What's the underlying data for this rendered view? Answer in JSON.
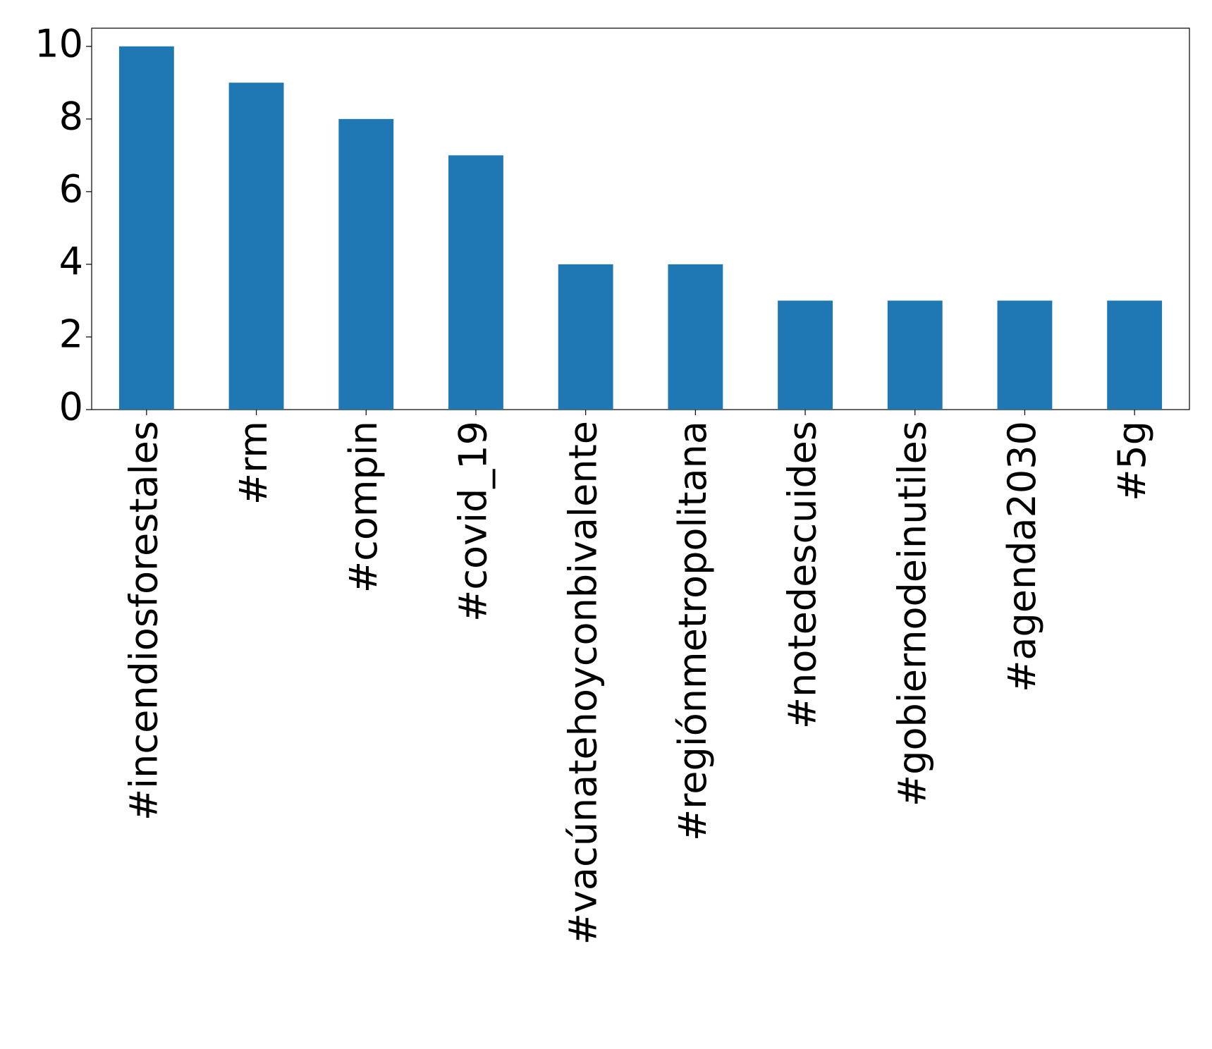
{
  "chart_data": {
    "type": "bar",
    "categories": [
      "#incendiosforestales",
      "#rm",
      "#compin",
      "#covid_19",
      "#vacúnatehoyconbivalente",
      "#regiónmetropolitana",
      "#notedescuides",
      "#gobiernodeinutiles",
      "#agenda2030",
      "#5g"
    ],
    "values": [
      10,
      9,
      8,
      7,
      4,
      4,
      3,
      3,
      3,
      3
    ],
    "color": "#1f77b4",
    "ylim": [
      0,
      10.5
    ],
    "yticks": [
      0,
      2,
      4,
      6,
      8,
      10
    ],
    "grid": false
  }
}
